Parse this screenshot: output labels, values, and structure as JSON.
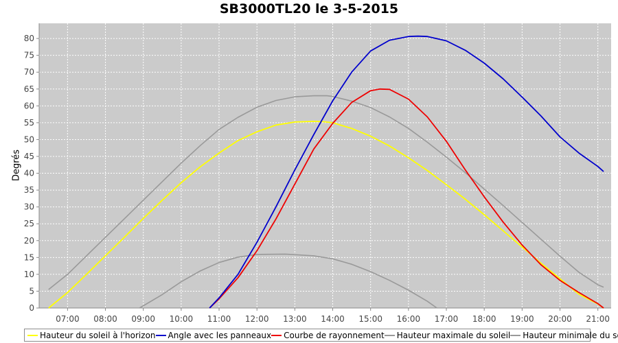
{
  "chart_data": {
    "type": "line",
    "title": "SB3000TL20 le 3-5-2015",
    "xlabel": "",
    "ylabel": "Degrés",
    "xlim": [
      6.25,
      21.35
    ],
    "ylim": [
      0,
      84.5
    ],
    "x_ticks": [
      "07:00",
      "08:00",
      "09:00",
      "10:00",
      "11:00",
      "12:00",
      "13:00",
      "14:00",
      "15:00",
      "16:00",
      "17:00",
      "18:00",
      "19:00",
      "20:00",
      "21:00"
    ],
    "y_ticks": [
      0,
      5,
      10,
      15,
      20,
      25,
      30,
      35,
      40,
      45,
      50,
      55,
      60,
      65,
      70,
      75,
      80
    ],
    "grid": true,
    "background": "#cbcbcb",
    "legend_position": "bottom",
    "series": [
      {
        "name": "Hauteur du soleil à l'horizon",
        "color": "#ffff00",
        "x": [
          6.5,
          7,
          7.5,
          8,
          8.5,
          9,
          9.5,
          10,
          10.5,
          11,
          11.5,
          12,
          12.5,
          13,
          13.5,
          13.75,
          14,
          14.5,
          15,
          15.5,
          16,
          16.5,
          17,
          17.5,
          18,
          18.5,
          19,
          19.5,
          20,
          20.5,
          21,
          21.15
        ],
        "y": [
          0,
          4.6,
          10,
          15.5,
          21,
          26.6,
          32,
          37.2,
          41.9,
          46,
          49.7,
          52.3,
          54.3,
          55.2,
          55.4,
          55.3,
          55,
          53.3,
          51,
          48.1,
          44.6,
          40.8,
          36.6,
          32.3,
          27.7,
          22.9,
          18.1,
          13.3,
          8.7,
          4.1,
          1.2,
          0
        ]
      },
      {
        "name": "Angle avec les panneaux",
        "color": "#0000cc",
        "x": [
          10.75,
          11,
          11.5,
          12,
          12.5,
          13,
          13.5,
          14,
          14.5,
          15,
          15.5,
          16,
          16.25,
          16.5,
          17,
          17.5,
          18,
          18.5,
          19,
          19.5,
          20,
          20.5,
          21,
          21.15
        ],
        "y": [
          0,
          3,
          10,
          19.5,
          30,
          41,
          51.5,
          61.5,
          70,
          76.3,
          79.5,
          80.6,
          80.7,
          80.6,
          79.3,
          76.5,
          72.7,
          68,
          62.6,
          57,
          50.8,
          46,
          42,
          40.5
        ]
      },
      {
        "name": "Courbe de rayonnement",
        "color": "#ee0000",
        "x": [
          10.75,
          11,
          11.5,
          12,
          12.5,
          13,
          13.5,
          14,
          14.5,
          15,
          15.25,
          15.5,
          16,
          16.5,
          17,
          17.5,
          18,
          18.5,
          19,
          19.5,
          20,
          20.5,
          21,
          21.15
        ],
        "y": [
          0,
          2.7,
          9,
          17,
          26.4,
          36.8,
          47.2,
          54.8,
          61,
          64.5,
          65,
          64.9,
          62,
          56.7,
          49.5,
          41,
          33,
          25.5,
          18.7,
          12.8,
          8.2,
          4.6,
          1.3,
          0
        ]
      },
      {
        "name": "Hauteur maximale du soleil",
        "color": "#999999",
        "x": [
          6.5,
          7,
          7.5,
          8,
          8.5,
          9,
          9.5,
          10,
          10.5,
          11,
          11.5,
          12,
          12.5,
          13,
          13.5,
          13.85,
          14,
          14.5,
          15,
          15.5,
          16,
          16.5,
          17,
          17.5,
          18,
          18.5,
          19,
          19.5,
          20,
          20.5,
          21,
          21.15
        ],
        "y": [
          5.5,
          10,
          15.5,
          21,
          26.5,
          32,
          37.5,
          43,
          48.2,
          53,
          56.6,
          59.6,
          61.6,
          62.7,
          63,
          63,
          62.8,
          61.4,
          59.5,
          56.7,
          53.3,
          49.2,
          44.8,
          40.2,
          35.3,
          30.4,
          25.4,
          20.4,
          15.4,
          10.6,
          6.9,
          6.2
        ]
      },
      {
        "name": "Hauteur minimale du soleil",
        "color": "#999999",
        "x": [
          8.9,
          9.5,
          10,
          10.5,
          11,
          11.5,
          12,
          12.75,
          13.5,
          14,
          14.5,
          15,
          15.5,
          16,
          16.5,
          16.75
        ],
        "y": [
          0,
          4,
          7.8,
          11,
          13.5,
          15.1,
          15.9,
          16,
          15.5,
          14.6,
          13,
          10.8,
          8.2,
          5.3,
          2,
          0
        ]
      }
    ]
  }
}
